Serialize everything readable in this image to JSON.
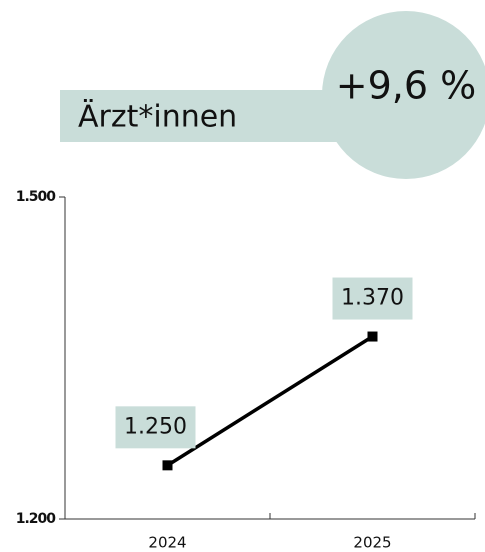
{
  "chart_data": {
    "type": "line",
    "title": "Ärzt*innen",
    "annotation": "+9,6 %",
    "categories": [
      "2024",
      "2025"
    ],
    "values": [
      1250,
      1370
    ],
    "value_labels": [
      "1.250",
      "1.370"
    ],
    "color": "#000000",
    "label_color": "#c9ddd9",
    "ylim": [
      1200,
      1500
    ],
    "yticks": [
      {
        "value": 1200,
        "label": "1.200"
      },
      {
        "value": 1500,
        "label": "1.500"
      }
    ]
  }
}
